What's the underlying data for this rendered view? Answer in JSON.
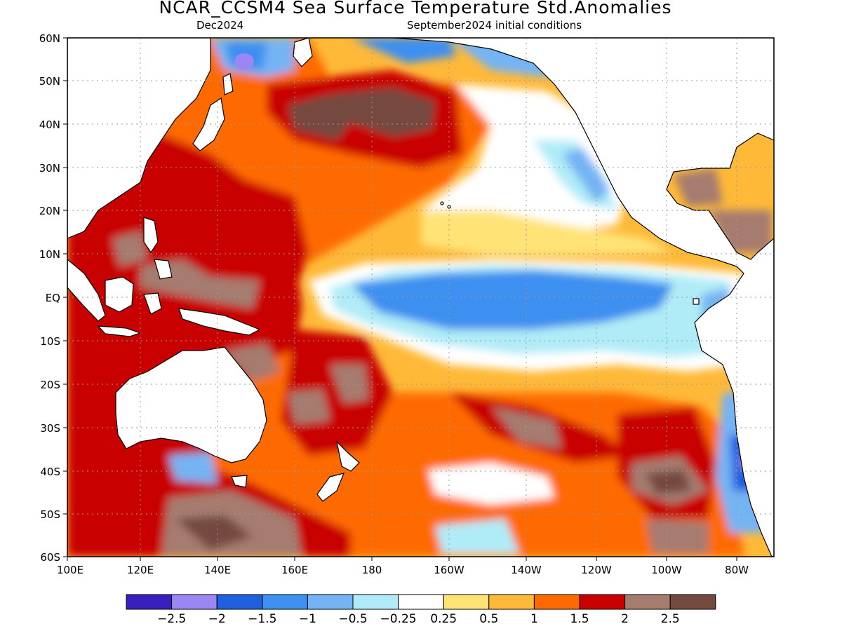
{
  "title": "NCAR_CCSM4 Sea Surface Temperature Std.Anomalies",
  "subtitle_left": "Dec2024",
  "subtitle_right": "September2024 initial conditions",
  "lat_labels": [
    "60N",
    "50N",
    "40N",
    "30N",
    "20N",
    "10N",
    "EQ",
    "10S",
    "20S",
    "30S",
    "40S",
    "50S",
    "60S"
  ],
  "lon_labels": [
    "100E",
    "120E",
    "140E",
    "160E",
    "180",
    "160W",
    "140W",
    "120W",
    "100W",
    "80W"
  ],
  "colorbar": {
    "labels": [
      "−2.5",
      "−2",
      "−1.5",
      "−1",
      "−0.5",
      "−0.25",
      "0.25",
      "0.5",
      "1",
      "1.5",
      "2",
      "2.5"
    ],
    "colors": [
      "#3a1fbf",
      "#9b86f3",
      "#1f5fe0",
      "#3d8ff0",
      "#74b4f4",
      "#b0ecf7",
      "#ffffff",
      "#ffe377",
      "#ffb938",
      "#ff6a00",
      "#c80000",
      "#a67c6f",
      "#744a40"
    ]
  },
  "colors": {
    "land": "#ffffff",
    "coastline": "#000000",
    "grid": "#9a9a9a"
  }
}
